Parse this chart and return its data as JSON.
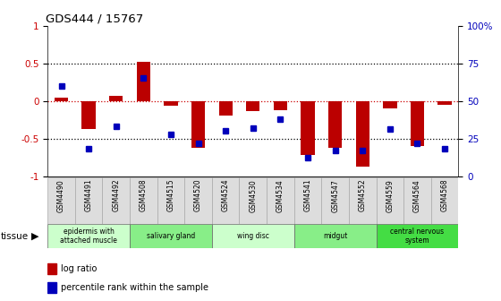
{
  "title": "GDS444 / 15767",
  "samples": [
    "GSM4490",
    "GSM4491",
    "GSM4492",
    "GSM4508",
    "GSM4515",
    "GSM4520",
    "GSM4524",
    "GSM4530",
    "GSM4534",
    "GSM4541",
    "GSM4547",
    "GSM4552",
    "GSM4559",
    "GSM4564",
    "GSM4568"
  ],
  "log_ratio": [
    0.04,
    -0.38,
    0.07,
    0.52,
    -0.07,
    -0.62,
    -0.2,
    -0.14,
    -0.12,
    -0.72,
    -0.62,
    -0.88,
    -0.1,
    -0.6,
    -0.05
  ],
  "percentile": [
    60,
    18,
    33,
    65,
    28,
    22,
    30,
    32,
    38,
    12,
    17,
    17,
    31,
    22,
    18
  ],
  "tissue_groups": [
    {
      "label": "epidermis with\nattached muscle",
      "start": 0,
      "end": 3,
      "color": "#ccffcc"
    },
    {
      "label": "salivary gland",
      "start": 3,
      "end": 6,
      "color": "#88ee88"
    },
    {
      "label": "wing disc",
      "start": 6,
      "end": 9,
      "color": "#ccffcc"
    },
    {
      "label": "midgut",
      "start": 9,
      "end": 12,
      "color": "#88ee88"
    },
    {
      "label": "central nervous\nsystem",
      "start": 12,
      "end": 15,
      "color": "#44dd44"
    }
  ],
  "bar_color": "#bb0000",
  "dot_color": "#0000bb",
  "ylim": [
    -1,
    1
  ],
  "yticks_left": [
    -1,
    -0.5,
    0,
    0.5,
    1
  ],
  "right_tick_positions": [
    -1,
    -0.5,
    0,
    0.5,
    1
  ],
  "right_tick_labels": [
    "0",
    "25",
    "50",
    "75",
    "100%"
  ]
}
